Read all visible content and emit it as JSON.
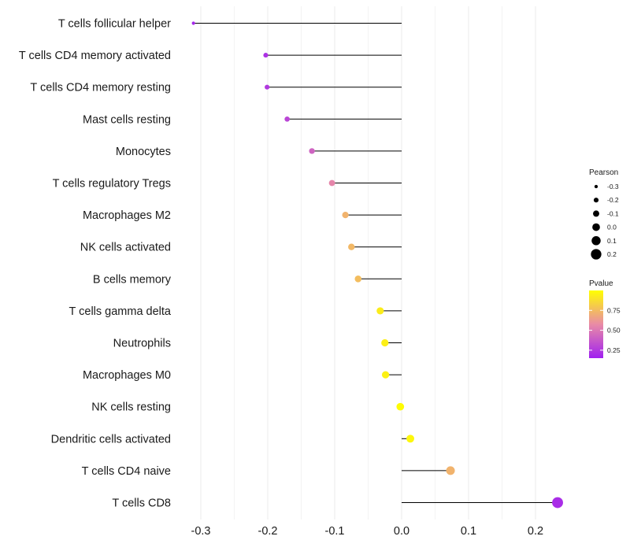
{
  "chart_data": {
    "type": "lollipop",
    "categories": [
      "T cells follicular helper",
      "T cells CD4 memory activated",
      "T cells CD4 memory resting",
      "Mast cells resting",
      "Monocytes",
      "T cells regulatory  Tregs",
      "Macrophages M2",
      "NK cells activated",
      "B cells memory",
      "T cells gamma delta",
      "Neutrophils",
      "Macrophages M0",
      "NK cells resting",
      "Dendritic cells activated",
      "T cells CD4 naive",
      "T cells CD8"
    ],
    "pearson": [
      -0.311,
      -0.203,
      -0.201,
      -0.171,
      -0.134,
      -0.104,
      -0.084,
      -0.075,
      -0.065,
      -0.032,
      -0.025,
      -0.024,
      -0.002,
      0.013,
      0.073,
      0.233
    ],
    "pvalue": [
      0.18,
      0.22,
      0.25,
      0.3,
      0.42,
      0.55,
      0.72,
      0.74,
      0.76,
      0.93,
      0.94,
      0.95,
      0.99,
      0.97,
      0.72,
      0.2
    ],
    "x_ticks": [
      "-0.3",
      "-0.2",
      "-0.1",
      "0.0",
      "0.1",
      "0.2"
    ],
    "x_tick_values": [
      -0.3,
      -0.2,
      -0.1,
      0.0,
      0.1,
      0.2
    ],
    "xlim": [
      -0.34,
      0.25
    ],
    "xlabel": "",
    "ylabel": "",
    "grid": true,
    "legend_position": "right",
    "legend_size": {
      "title": "Pearson",
      "labels": [
        "-0.3",
        "-0.2",
        "-0.1",
        "0.0",
        "0.1",
        "0.2"
      ],
      "values": [
        -0.3,
        -0.2,
        -0.1,
        0.0,
        0.1,
        0.2
      ]
    },
    "legend_color": {
      "title": "Pvalue",
      "labels": [
        "0.75",
        "0.50",
        "0.25"
      ],
      "values": [
        0.75,
        0.5,
        0.25
      ],
      "range": [
        0.15,
        1.0
      ],
      "low_color": "#a020f0",
      "high_color": "#ffff00"
    },
    "segment_color": "#000000",
    "grid_color": "#ebebeb"
  }
}
